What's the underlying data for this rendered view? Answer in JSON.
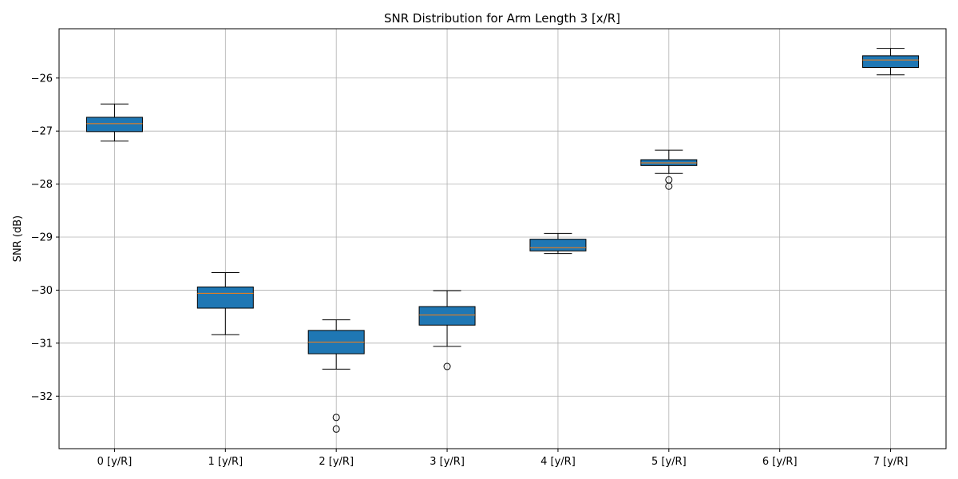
{
  "chart_data": {
    "type": "boxplot",
    "title": "SNR Distribution for Arm Length 3 [x/R]",
    "xlabel": "",
    "ylabel": "SNR (dB)",
    "categories": [
      "0 [y/R]",
      "1 [y/R]",
      "2 [y/R]",
      "3 [y/R]",
      "4 [y/R]",
      "5 [y/R]",
      "6 [y/R]",
      "7 [y/R]"
    ],
    "ylim": [
      -32.99,
      -25.07
    ],
    "yticks": [
      -32,
      -31,
      -30,
      -29,
      -28,
      -27,
      -26
    ],
    "ytick_labels": [
      "−32",
      "−31",
      "−30",
      "−29",
      "−28",
      "−27",
      "−26"
    ],
    "grid": true,
    "box_color": "#1f77b4",
    "median_color": "#ff7f0e",
    "boxes": [
      {
        "category": "0 [y/R]",
        "whislo": -27.19,
        "q1": -27.01,
        "med": -26.86,
        "q3": -26.74,
        "whishi": -26.49,
        "fliers": []
      },
      {
        "category": "1 [y/R]",
        "whislo": -30.84,
        "q1": -30.34,
        "med": -30.06,
        "q3": -29.94,
        "whishi": -29.67,
        "fliers": []
      },
      {
        "category": "2 [y/R]",
        "whislo": -31.49,
        "q1": -31.2,
        "med": -30.98,
        "q3": -30.76,
        "whishi": -30.56,
        "fliers": [
          -32.4,
          -32.62
        ]
      },
      {
        "category": "3 [y/R]",
        "whislo": -31.06,
        "q1": -30.66,
        "med": -30.47,
        "q3": -30.31,
        "whishi": -30.01,
        "fliers": [
          -31.44
        ]
      },
      {
        "category": "4 [y/R]",
        "whislo": -29.31,
        "q1": -29.26,
        "med": -29.2,
        "q3": -29.04,
        "whishi": -28.93,
        "fliers": []
      },
      {
        "category": "5 [y/R]",
        "whislo": -27.8,
        "q1": -27.65,
        "med": -27.6,
        "q3": -27.54,
        "whishi": -27.36,
        "fliers": [
          -27.92,
          -28.04
        ]
      },
      {
        "category": "6 [y/R]",
        "whislo": null,
        "q1": null,
        "med": null,
        "q3": null,
        "whishi": null,
        "fliers": []
      },
      {
        "category": "7 [y/R]",
        "whislo": -25.94,
        "q1": -25.8,
        "med": -25.66,
        "q3": -25.58,
        "whishi": -25.44,
        "fliers": []
      }
    ]
  }
}
